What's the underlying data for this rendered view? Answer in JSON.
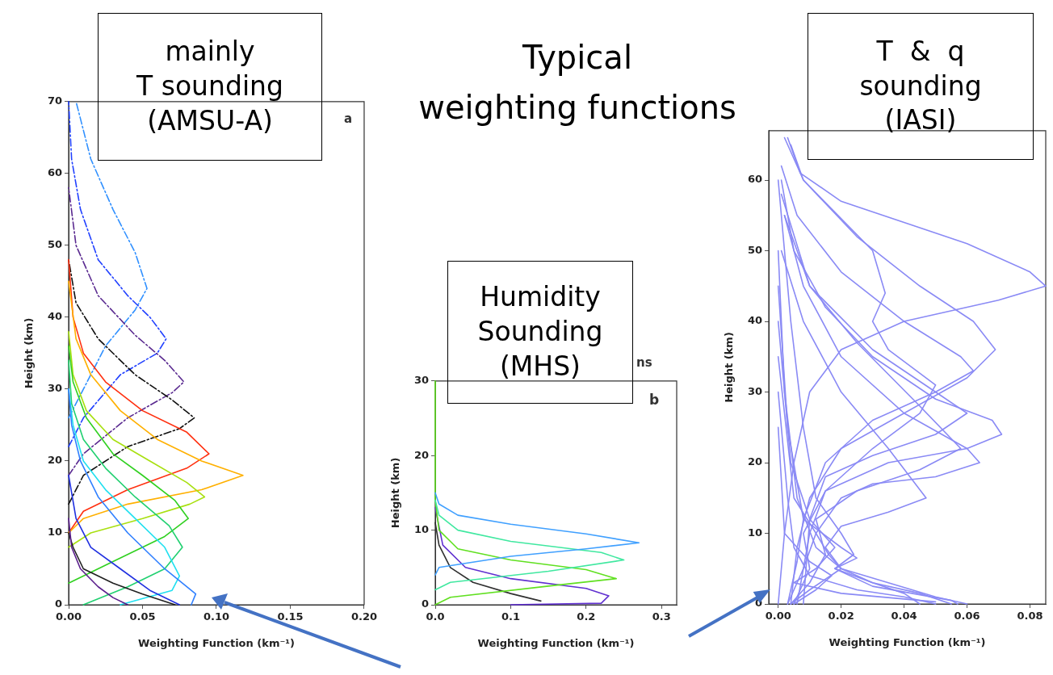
{
  "chart_data": [
    {
      "type": "line",
      "title": "mainly\nT sounding\n(AMSU-A)",
      "xlabel": "Weighting Function (km⁻¹)",
      "ylabel": "Height (km)",
      "marker": "none",
      "xlim": [
        0,
        0.2
      ],
      "xticks": [
        {
          "value": 0,
          "label": "0.00"
        },
        {
          "value": 0.05,
          "label": "0.05"
        },
        {
          "value": 0.1,
          "label": "0.10"
        },
        {
          "value": 0.15,
          "label": "0.15"
        },
        {
          "value": 0.2,
          "label": "0.20"
        }
      ],
      "ylim": [
        0,
        70
      ],
      "yticks": [
        0,
        10,
        20,
        30,
        40,
        50,
        60,
        70
      ],
      "annotations": [
        "a"
      ],
      "series": [
        {
          "color": "#5a1e8c",
          "x": [
            0,
            0.002,
            0.008,
            0.02,
            0.03,
            0.04
          ],
          "values": [
            12,
            8,
            5,
            2.5,
            1,
            0
          ]
        },
        {
          "color": "#202020",
          "x": [
            0,
            0.003,
            0.01,
            0.03,
            0.05,
            0.072
          ],
          "values": [
            10,
            8,
            5,
            3,
            1.5,
            0
          ]
        },
        {
          "color": "#2030e0",
          "x": [
            0,
            0.005,
            0.015,
            0.035,
            0.055,
            0.075
          ],
          "values": [
            18,
            12,
            8,
            5,
            2,
            0
          ]
        },
        {
          "color": "#3080ff",
          "x": [
            0,
            0.002,
            0.008,
            0.02,
            0.04,
            0.065,
            0.086,
            0.083
          ],
          "values": [
            30,
            25,
            20,
            15,
            10,
            5,
            1.5,
            0
          ]
        },
        {
          "color": "#20e0f0",
          "x": [
            0,
            0.003,
            0.01,
            0.025,
            0.045,
            0.065,
            0.075,
            0.07,
            0.035
          ],
          "values": [
            30,
            25,
            20,
            16,
            12,
            8,
            4,
            2,
            0
          ]
        },
        {
          "color": "#20d070",
          "x": [
            0.01,
            0.04,
            0.065,
            0.077,
            0.068,
            0.045,
            0.025,
            0.01,
            0.002,
            0
          ],
          "values": [
            0,
            2.5,
            5,
            8,
            11,
            15,
            19,
            23,
            28,
            34
          ]
        },
        {
          "color": "#30d020",
          "x": [
            0,
            0.03,
            0.065,
            0.081,
            0.072,
            0.05,
            0.03,
            0.012,
            0.003,
            0
          ],
          "values": [
            3,
            6,
            9.5,
            12,
            14.5,
            18,
            21,
            26,
            31,
            36
          ]
        },
        {
          "color": "#a8e010",
          "x": [
            0,
            0.015,
            0.05,
            0.082,
            0.092,
            0.08,
            0.055,
            0.03,
            0.012,
            0.003,
            0
          ],
          "values": [
            8,
            10,
            12,
            14,
            15,
            17,
            20,
            23,
            27,
            32,
            38
          ]
        },
        {
          "color": "#ffb000",
          "x": [
            0,
            0.01,
            0.04,
            0.09,
            0.118,
            0.09,
            0.06,
            0.035,
            0.015,
            0.005,
            0
          ],
          "values": [
            10,
            12,
            14,
            16,
            18,
            20,
            23,
            27,
            32,
            37,
            45
          ]
        },
        {
          "color": "#ff3010",
          "x": [
            0,
            0.01,
            0.04,
            0.08,
            0.095,
            0.08,
            0.05,
            0.025,
            0.01,
            0.003,
            0
          ],
          "values": [
            10,
            13,
            16,
            19,
            21,
            24,
            27,
            31,
            35,
            40,
            48
          ]
        },
        {
          "color": "#101010",
          "line_style": "dashed",
          "x": [
            0,
            0.01,
            0.04,
            0.075,
            0.085,
            0.07,
            0.045,
            0.02,
            0.005,
            0
          ],
          "values": [
            14,
            18,
            22,
            24.5,
            26,
            28.5,
            32,
            37,
            42,
            48
          ]
        },
        {
          "color": "#5a2a90",
          "line_style": "dashed",
          "x": [
            0,
            0.01,
            0.04,
            0.07,
            0.078,
            0.065,
            0.045,
            0.02,
            0.005,
            0
          ],
          "values": [
            18,
            21,
            26,
            29.5,
            31,
            34,
            37.5,
            43,
            50,
            58
          ]
        },
        {
          "color": "#2040ff",
          "line_style": "dashed",
          "x": [
            0,
            0.01,
            0.035,
            0.06,
            0.066,
            0.055,
            0.04,
            0.02,
            0.008,
            0.002,
            0
          ],
          "values": [
            22,
            26,
            32,
            35,
            37,
            40,
            43,
            48,
            55,
            62,
            70
          ]
        },
        {
          "color": "#3090ff",
          "line_style": "dashed",
          "x": [
            0,
            0.01,
            0.025,
            0.045,
            0.053,
            0.045,
            0.03,
            0.015,
            0.005
          ],
          "values": [
            26,
            30,
            36,
            41,
            44,
            49,
            55,
            62,
            70
          ]
        }
      ]
    },
    {
      "type": "line",
      "title": "Humidity\nSounding\n(MHS)",
      "xlabel": "Weighting Function (km⁻¹)",
      "ylabel": "Height (km)",
      "marker": "none",
      "xlim": [
        0,
        0.32
      ],
      "xticks": [
        {
          "value": 0,
          "label": "0.0"
        },
        {
          "value": 0.1,
          "label": "0.1"
        },
        {
          "value": 0.2,
          "label": "0.2"
        },
        {
          "value": 0.3,
          "label": "0.3"
        }
      ],
      "ylim": [
        0,
        30
      ],
      "yticks": [
        0,
        10,
        20,
        30
      ],
      "annotations": [
        "b",
        "ns",
        "Typical\nweighting functions"
      ],
      "series": [
        {
          "color": "#40a0ff",
          "x": [
            0,
            0.005,
            0.1,
            0.2,
            0.27,
            0.2,
            0.1,
            0.03,
            0.005,
            0
          ],
          "values": [
            4,
            5,
            6.5,
            7.5,
            8.3,
            9.5,
            10.8,
            12,
            13.5,
            15
          ]
        },
        {
          "color": "#40e8a0",
          "x": [
            0,
            0.02,
            0.15,
            0.25,
            0.22,
            0.1,
            0.03,
            0.005,
            0
          ],
          "values": [
            2,
            3,
            4.5,
            6,
            7,
            8.5,
            10,
            12,
            14
          ]
        },
        {
          "color": "#60e020",
          "x": [
            0,
            0.02,
            0.15,
            0.24,
            0.2,
            0.1,
            0.03,
            0.005,
            0,
            0
          ],
          "values": [
            0,
            1,
            2.5,
            3.5,
            4.7,
            6,
            7.5,
            10,
            14,
            30
          ]
        },
        {
          "color": "#6030d0",
          "x": [
            0.1,
            0.22,
            0.23,
            0.2,
            0.1,
            0.04,
            0.01,
            0
          ],
          "values": [
            0,
            0.2,
            1.2,
            2.2,
            3.5,
            5,
            8,
            13
          ]
        },
        {
          "color": "#303030",
          "x": [
            0.14,
            0.1,
            0.05,
            0.02,
            0.005,
            0
          ],
          "values": [
            0.5,
            1.5,
            3,
            5,
            8,
            11
          ]
        }
      ]
    },
    {
      "type": "line",
      "title": "T  &  q\nsounding\n(IASI)",
      "xlabel": "Weighting Function (km⁻¹)",
      "ylabel": "Height (km)",
      "marker": "none",
      "xlim": [
        -0.003,
        0.085
      ],
      "xticks": [
        {
          "value": 0,
          "label": "0.00"
        },
        {
          "value": 0.02,
          "label": "0.02"
        },
        {
          "value": 0.04,
          "label": "0.04"
        },
        {
          "value": 0.06,
          "label": "0.06"
        },
        {
          "value": 0.08,
          "label": "0.08"
        }
      ],
      "ylim": [
        0,
        67
      ],
      "yticks": [
        0,
        10,
        20,
        30,
        40,
        50,
        60
      ],
      "series": [
        {
          "color": "#8a8af5",
          "x": [
            0.003,
            0.007,
            0.02,
            0.04,
            0.06,
            0.08,
            0.085,
            0.07,
            0.04,
            0.02,
            0.01,
            0.005,
            0.002,
            0
          ],
          "values": [
            66,
            61,
            57,
            54,
            51,
            47,
            45,
            43,
            40,
            36,
            30,
            20,
            10,
            0
          ]
        },
        {
          "color": "#8a8af5",
          "x": [
            0.002,
            0.008,
            0.025,
            0.045,
            0.062,
            0.069,
            0.06,
            0.04,
            0.02,
            0.01,
            0.006,
            0.004
          ],
          "values": [
            66,
            60,
            52,
            45,
            40,
            36,
            32,
            27,
            22,
            15,
            8,
            0
          ]
        },
        {
          "color": "#8a8af5",
          "x": [
            0.001,
            0.005,
            0.015,
            0.03,
            0.05,
            0.068,
            0.071,
            0.06,
            0.035,
            0.015,
            0.008,
            0.01,
            0.005
          ],
          "values": [
            60,
            50,
            42,
            35,
            29,
            26,
            24,
            22,
            20,
            16,
            10,
            5,
            0
          ]
        },
        {
          "color": "#8a8af5",
          "x": [
            0.001,
            0.006,
            0.02,
            0.04,
            0.058,
            0.062,
            0.05,
            0.03,
            0.015,
            0.008,
            0.006,
            0.003
          ],
          "values": [
            62,
            55,
            47,
            40,
            35,
            33,
            30,
            26,
            20,
            12,
            6,
            0
          ]
        },
        {
          "color": "#8a8af5",
          "x": [
            0.002,
            0.01,
            0.025,
            0.045,
            0.058,
            0.045,
            0.025,
            0.012,
            0.015,
            0.01,
            0.004
          ],
          "values": [
            55,
            45,
            37,
            28,
            22,
            19,
            16,
            12,
            7,
            3,
            0
          ]
        },
        {
          "color": "#8a8af5",
          "x": [
            0.001,
            0.008,
            0.02,
            0.035,
            0.047,
            0.035,
            0.02,
            0.015,
            0.02,
            0.01,
            0.004
          ],
          "values": [
            50,
            40,
            30,
            22,
            15,
            13,
            11,
            8,
            5,
            2,
            0
          ]
        },
        {
          "color": "#8a8af5",
          "x": [
            0.004,
            0.008,
            0.03,
            0.034,
            0.03,
            0.035,
            0.05,
            0.045,
            0.03,
            0.015,
            0.01,
            0.006
          ],
          "values": [
            65,
            60,
            50,
            44,
            40,
            36,
            31,
            27,
            22,
            16,
            10,
            0
          ]
        },
        {
          "color": "#8a8af5",
          "x": [
            0.002,
            0.008,
            0.02,
            0.04,
            0.06,
            0.064,
            0.05,
            0.03,
            0.02,
            0.012,
            0.008,
            0.003
          ],
          "values": [
            55,
            45,
            35,
            27,
            22,
            20,
            18,
            17,
            15,
            10,
            5,
            0
          ]
        },
        {
          "color": "#8a8af5",
          "x": [
            0.001,
            0.01,
            0.03,
            0.05,
            0.06,
            0.05,
            0.03,
            0.015,
            0.01,
            0.008
          ],
          "values": [
            58,
            45,
            36,
            30,
            27,
            24,
            21,
            18,
            12,
            0
          ]
        },
        {
          "color": "#8a8af5",
          "x": [
            0,
            0.002,
            0.006,
            0.012,
            0.02,
            0.035,
            0.05,
            0.06
          ],
          "values": [
            50,
            30,
            15,
            8,
            5,
            3,
            1,
            0
          ]
        },
        {
          "color": "#8a8af5",
          "x": [
            0,
            0.003,
            0.008,
            0.02,
            0.025,
            0.018,
            0.03,
            0.055,
            0.057
          ],
          "values": [
            45,
            25,
            12,
            8,
            6.5,
            5,
            2.5,
            0.5,
            0
          ]
        },
        {
          "color": "#8a8af5",
          "x": [
            0,
            0.004,
            0.01,
            0.018,
            0.012,
            0.005,
            0.02,
            0.05
          ],
          "values": [
            40,
            20,
            12,
            8,
            5,
            3,
            1.5,
            0.3
          ]
        },
        {
          "color": "#8a8af5",
          "x": [
            0,
            0.005,
            0.012,
            0.016,
            0.02,
            0.03,
            0.045,
            0.055
          ],
          "values": [
            35,
            15,
            10,
            7,
            5,
            3,
            1.5,
            0
          ]
        },
        {
          "color": "#8a8af5",
          "x": [
            0,
            0.003,
            0.005,
            0.01,
            0.025,
            0.04,
            0.05
          ],
          "values": [
            30,
            15,
            8,
            4,
            2,
            1,
            0
          ]
        },
        {
          "color": "#8a8af5",
          "x": [
            0,
            0.002,
            0.01,
            0.017,
            0.012,
            0.005
          ],
          "values": [
            25,
            10,
            6,
            4,
            2,
            0
          ]
        },
        {
          "color": "#8a8af5",
          "x": [
            0,
            0.004,
            0.008,
            0.012,
            0.02,
            0.024,
            0.018,
            0.03,
            0.04,
            0.045
          ],
          "values": [
            60,
            40,
            25,
            15,
            10,
            7,
            5,
            3,
            1.5,
            0
          ]
        }
      ]
    }
  ]
}
